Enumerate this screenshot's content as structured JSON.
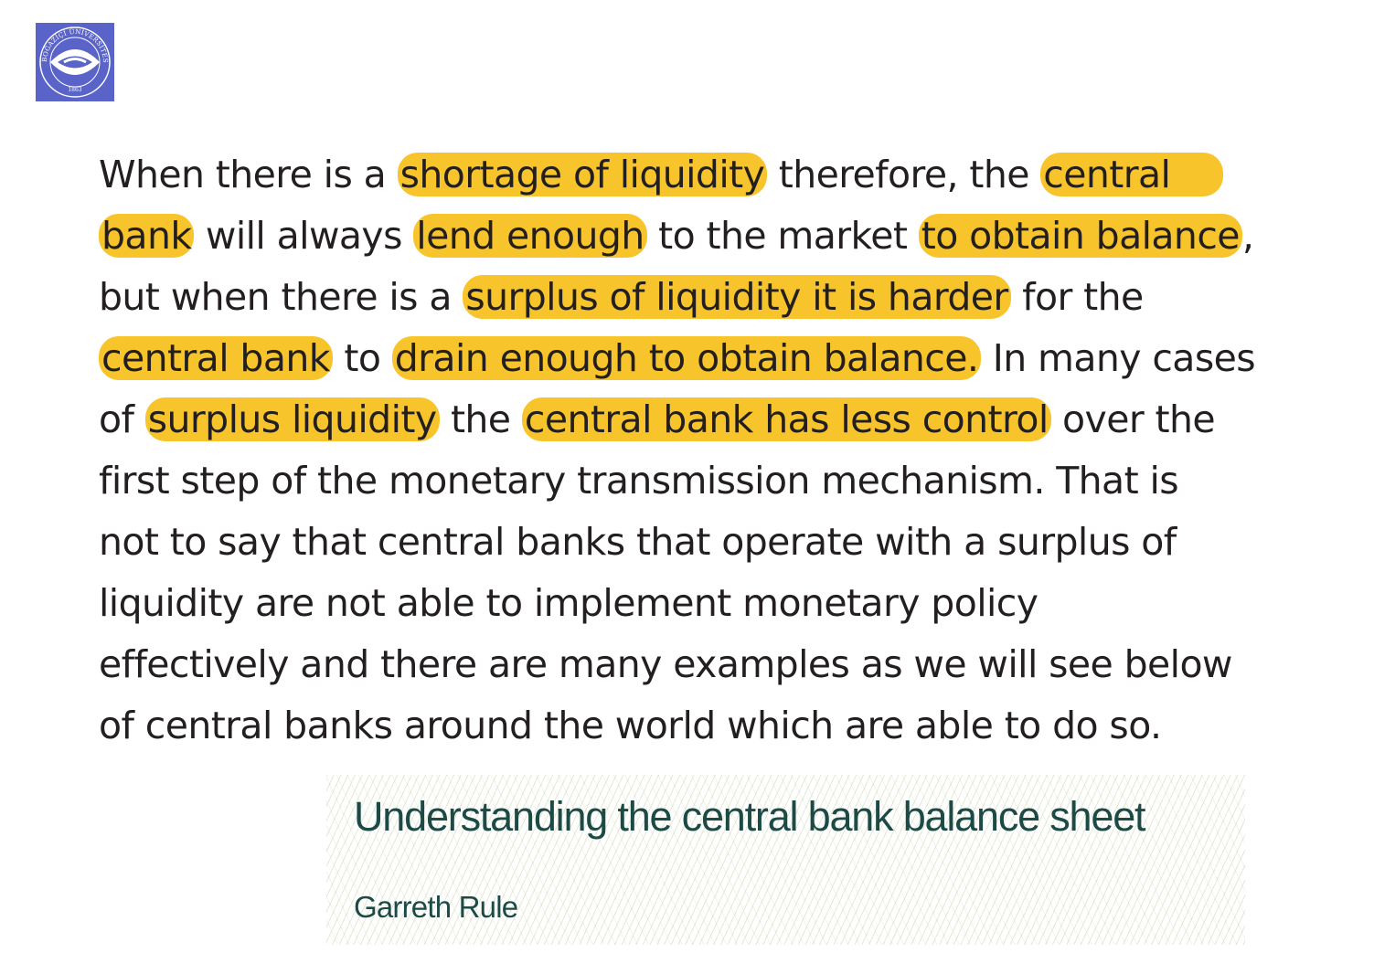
{
  "logo": {
    "ring_text": "BOĞAZİÇİ ÜNİVERSİTESİ",
    "year": "1863",
    "background": "#5a64c8"
  },
  "quote": {
    "highlight_color": "#f7c52b",
    "lines": [
      [
        "When there is a ",
        "shortage of liquidity",
        " therefore, the ",
        "central"
      ],
      [
        "",
        "bank",
        " will always ",
        "lend enough",
        " to the market ",
        "to obtain balance",
        ","
      ],
      [
        "but when there is a ",
        "surplus of liquidity it is harder",
        " for the"
      ],
      [
        "",
        "central bank",
        " to ",
        "drain enough to obtain balance.",
        "  In many cases"
      ],
      [
        "of ",
        "surplus liquidity",
        " the ",
        "central bank has less control",
        " over the"
      ],
      [
        "first step of the monetary transmission mechanism.  That is"
      ],
      [
        "not to say that central banks that operate with a surplus of"
      ],
      [
        "liquidity are not able to implement monetary policy"
      ],
      [
        "effectively and there are many examples as we will see below"
      ],
      [
        "of central banks around the world which are able to do so."
      ]
    ]
  },
  "citation": {
    "title": "Understanding the central bank balance sheet",
    "author": "Garreth Rule",
    "text_color": "#1c4a45"
  }
}
